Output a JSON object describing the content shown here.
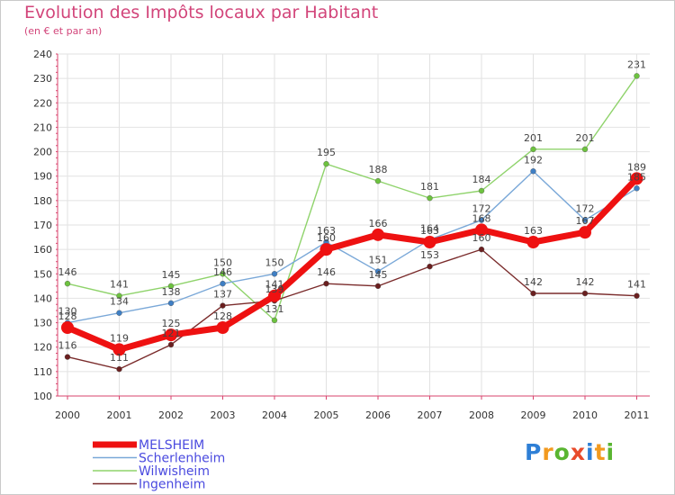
{
  "logo": {
    "letters": [
      "P",
      "r",
      "o",
      "x",
      "i",
      "t",
      "i"
    ],
    "colors": [
      "#2e7fd6",
      "#f29a1f",
      "#59b531",
      "#e84a2a",
      "#2e7fd6",
      "#f29a1f",
      "#59b531"
    ]
  },
  "chart_data": {
    "type": "line",
    "title": "Evolution des Impôts locaux par Habitant",
    "subtitle": "(en € et par an)",
    "xlabel": "",
    "ylabel": "",
    "categories": [
      "2000",
      "2001",
      "2002",
      "2003",
      "2004",
      "2005",
      "2006",
      "2007",
      "2008",
      "2009",
      "2010",
      "2011"
    ],
    "ylim": [
      100,
      240
    ],
    "yticks": [
      100,
      110,
      120,
      130,
      140,
      150,
      160,
      170,
      180,
      190,
      200,
      210,
      220,
      230,
      240
    ],
    "grid": true,
    "legend_position": "bottom-left",
    "series": [
      {
        "name": "Wilwisheim",
        "color": "#8fd36b",
        "point_color": "#6dc23f",
        "emphasis": false,
        "values": [
          146,
          141,
          145,
          150,
          131,
          195,
          188,
          181,
          184,
          201,
          201,
          231
        ]
      },
      {
        "name": "Scherlenheim",
        "color": "#7aa8d8",
        "point_color": "#3f7fc4",
        "emphasis": false,
        "values": [
          130,
          134,
          138,
          146,
          150,
          163,
          151,
          164,
          172,
          192,
          172,
          185
        ]
      },
      {
        "name": "Ingenheim",
        "color": "#7a2b2b",
        "point_color": "#6a1f1f",
        "emphasis": false,
        "values": [
          116,
          111,
          121,
          137,
          139,
          146,
          145,
          153,
          160,
          142,
          142,
          141
        ]
      },
      {
        "name": "MELSHEIM",
        "color": "#ee1111",
        "point_color": "#ee1111",
        "emphasis": true,
        "values": [
          128,
          119,
          125,
          128,
          141,
          160,
          166,
          163,
          168,
          163,
          167,
          189
        ]
      }
    ]
  }
}
